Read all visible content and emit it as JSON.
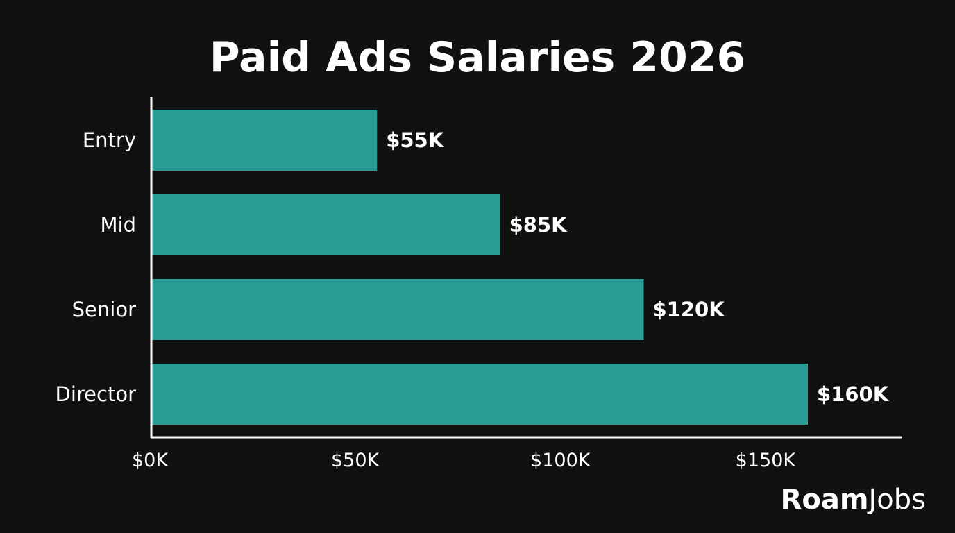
{
  "chart_data": {
    "type": "bar",
    "orientation": "horizontal",
    "title": "Paid Ads Salaries 2026",
    "categories": [
      "Entry",
      "Mid",
      "Senior",
      "Director"
    ],
    "values": [
      55,
      85,
      120,
      160
    ],
    "data_labels": [
      "$55K",
      "$85K",
      "$120K",
      "$160K"
    ],
    "xticks": [
      0,
      50,
      100,
      150
    ],
    "xtick_labels": [
      "$0K",
      "$50K",
      "$100K",
      "$150K"
    ],
    "xlim": [
      0,
      183
    ],
    "xlabel": "",
    "ylabel": "",
    "grid": false,
    "colors": {
      "bar": "#2a9d95",
      "background": "#111111",
      "text": "#ffffff"
    }
  },
  "logo": {
    "part1": "Roam",
    "part2": "Jobs"
  }
}
